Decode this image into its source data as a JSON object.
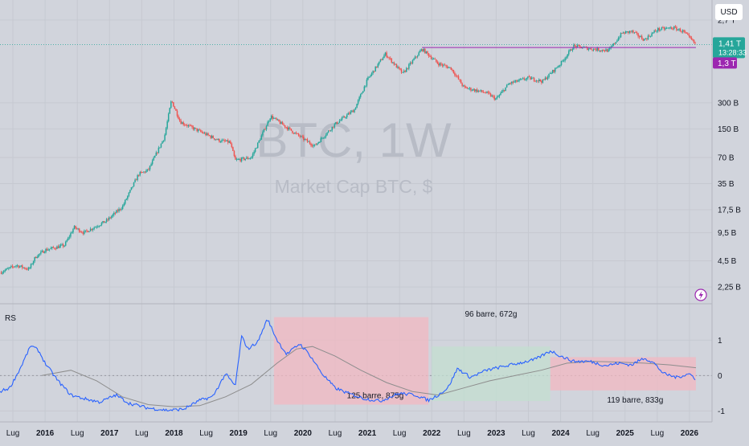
{
  "header": {
    "currency_label": "USD"
  },
  "watermark": {
    "symbol": "BTC, 1W",
    "subtitle": "Market Cap BTC, $"
  },
  "price_axis": {
    "ticks": [
      {
        "label": "2,7 T",
        "v": 2700000000000.0
      },
      {
        "label": "300 B",
        "v": 300000000000.0
      },
      {
        "label": "150 B",
        "v": 150000000000.0
      },
      {
        "label": "70 B",
        "v": 70000000000.0
      },
      {
        "label": "35 B",
        "v": 35000000000.0
      },
      {
        "label": "17,5 B",
        "v": 17500000000.0
      },
      {
        "label": "9,5 B",
        "v": 9500000000.0
      },
      {
        "label": "4,5 B",
        "v": 4500000000.0
      },
      {
        "label": "2,25 B",
        "v": 2250000000.0
      }
    ],
    "last_price": {
      "label": "1,41 T",
      "countdown": "13:28:33",
      "v": 1410000000000.0,
      "color": "#26a69a"
    },
    "level": {
      "label": "1,3 T",
      "v": 1300000000000.0,
      "color": "#9c27b0"
    }
  },
  "rs_panel": {
    "label": "RS",
    "ticks": [
      {
        "label": "1",
        "v": 1
      },
      {
        "label": "0",
        "v": 0
      },
      {
        "label": "-1",
        "v": -1
      }
    ]
  },
  "time_axis": {
    "labels": [
      {
        "label": "Lug",
        "t": 2015.5
      },
      {
        "label": "2016",
        "t": 2016.0
      },
      {
        "label": "Lug",
        "t": 2016.5
      },
      {
        "label": "2017",
        "t": 2017.0
      },
      {
        "label": "Lug",
        "t": 2017.5
      },
      {
        "label": "2018",
        "t": 2018.0
      },
      {
        "label": "Lug",
        "t": 2018.5
      },
      {
        "label": "2019",
        "t": 2019.0
      },
      {
        "label": "Lug",
        "t": 2019.5
      },
      {
        "label": "2020",
        "t": 2020.0
      },
      {
        "label": "Lug",
        "t": 2020.5
      },
      {
        "label": "2021",
        "t": 2021.0
      },
      {
        "label": "Lug",
        "t": 2021.5
      },
      {
        "label": "2022",
        "t": 2022.0
      },
      {
        "label": "Lug",
        "t": 2022.5
      },
      {
        "label": "2023",
        "t": 2023.0
      },
      {
        "label": "Lug",
        "t": 2023.5
      },
      {
        "label": "2024",
        "t": 2024.0
      },
      {
        "label": "Lug",
        "t": 2024.5
      },
      {
        "label": "2025",
        "t": 2025.0
      },
      {
        "label": "Lug",
        "t": 2025.5
      },
      {
        "label": "2026",
        "t": 2026.0
      }
    ]
  },
  "annotations": [
    {
      "label": "125 barre, 875g",
      "t0": 2019.55,
      "t1": 2021.95,
      "v0": 1.65,
      "v1": -0.82,
      "fill": "#f2b8c2"
    },
    {
      "label": "96 barre, 672g",
      "t0": 2022.0,
      "t1": 2023.84,
      "v0": 0.82,
      "v1": -0.72,
      "fill": "#c3dfd0"
    },
    {
      "label": "119 barre, 833g",
      "t0": 2023.84,
      "t1": 2026.1,
      "v0": 0.52,
      "v1": -0.42,
      "fill": "#f2b8c2"
    }
  ],
  "colors": {
    "up": "#26a69a",
    "down": "#ef5350",
    "rs_line": "#2962ff",
    "rs_ma": "#8d8d8d",
    "level_line": "#9c27b0",
    "price_line": "#26a69a"
  },
  "chart_data": [
    {
      "type": "candlestick",
      "series": [
        {
          "name": "BTC, 1W"
        }
      ],
      "y_scale": "log",
      "ylim": [
        1900000000.0,
        3000000000000.0
      ],
      "xlim": [
        2015.3,
        2026.35
      ],
      "anchors": [
        {
          "t": 2015.3,
          "v": 3300000000.0
        },
        {
          "t": 2015.55,
          "v": 4000000000.0
        },
        {
          "t": 2015.75,
          "v": 3600000000.0
        },
        {
          "t": 2015.85,
          "v": 5000000000.0
        },
        {
          "t": 2016.0,
          "v": 6000000000.0
        },
        {
          "t": 2016.3,
          "v": 6800000000.0
        },
        {
          "t": 2016.45,
          "v": 11000000000.0
        },
        {
          "t": 2016.6,
          "v": 9500000000.0
        },
        {
          "t": 2016.95,
          "v": 13000000000.0
        },
        {
          "t": 2017.2,
          "v": 19000000000.0
        },
        {
          "t": 2017.45,
          "v": 45000000000.0
        },
        {
          "t": 2017.6,
          "v": 50000000000.0
        },
        {
          "t": 2017.85,
          "v": 120000000000.0
        },
        {
          "t": 2017.96,
          "v": 320000000000.0
        },
        {
          "t": 2018.1,
          "v": 180000000000.0
        },
        {
          "t": 2018.4,
          "v": 140000000000.0
        },
        {
          "t": 2018.7,
          "v": 110000000000.0
        },
        {
          "t": 2018.87,
          "v": 105000000000.0
        },
        {
          "t": 2018.95,
          "v": 65000000000.0
        },
        {
          "t": 2019.2,
          "v": 70000000000.0
        },
        {
          "t": 2019.5,
          "v": 210000000000.0
        },
        {
          "t": 2019.9,
          "v": 130000000000.0
        },
        {
          "t": 2020.18,
          "v": 95000000000.0
        },
        {
          "t": 2020.5,
          "v": 170000000000.0
        },
        {
          "t": 2020.8,
          "v": 250000000000.0
        },
        {
          "t": 2021.0,
          "v": 550000000000.0
        },
        {
          "t": 2021.28,
          "v": 1100000000000.0
        },
        {
          "t": 2021.55,
          "v": 650000000000.0
        },
        {
          "t": 2021.85,
          "v": 1250000000000.0
        },
        {
          "t": 2022.1,
          "v": 850000000000.0
        },
        {
          "t": 2022.3,
          "v": 750000000000.0
        },
        {
          "t": 2022.5,
          "v": 450000000000.0
        },
        {
          "t": 2022.85,
          "v": 390000000000.0
        },
        {
          "t": 2023.0,
          "v": 330000000000.0
        },
        {
          "t": 2023.2,
          "v": 500000000000.0
        },
        {
          "t": 2023.5,
          "v": 580000000000.0
        },
        {
          "t": 2023.72,
          "v": 530000000000.0
        },
        {
          "t": 2024.0,
          "v": 850000000000.0
        },
        {
          "t": 2024.2,
          "v": 1350000000000.0
        },
        {
          "t": 2024.5,
          "v": 1250000000000.0
        },
        {
          "t": 2024.75,
          "v": 1200000000000.0
        },
        {
          "t": 2024.95,
          "v": 1900000000000.0
        },
        {
          "t": 2025.1,
          "v": 2000000000000.0
        },
        {
          "t": 2025.3,
          "v": 1600000000000.0
        },
        {
          "t": 2025.5,
          "v": 2100000000000.0
        },
        {
          "t": 2025.75,
          "v": 2200000000000.0
        },
        {
          "t": 2025.9,
          "v": 2000000000000.0
        },
        {
          "t": 2026.1,
          "v": 1410000000000.0
        }
      ]
    },
    {
      "type": "line",
      "series": [
        {
          "name": "RS"
        }
      ],
      "ylim": [
        -1.15,
        1.8
      ],
      "xlim": [
        2015.3,
        2026.35
      ],
      "rs": [
        {
          "t": 2015.3,
          "v": -0.45
        },
        {
          "t": 2015.45,
          "v": -0.35
        },
        {
          "t": 2015.6,
          "v": 0.15
        },
        {
          "t": 2015.78,
          "v": 0.85
        },
        {
          "t": 2015.9,
          "v": 0.7
        },
        {
          "t": 2016.0,
          "v": 0.35
        },
        {
          "t": 2016.2,
          "v": -0.15
        },
        {
          "t": 2016.4,
          "v": -0.55
        },
        {
          "t": 2016.6,
          "v": -0.65
        },
        {
          "t": 2016.85,
          "v": -0.75
        },
        {
          "t": 2017.1,
          "v": -0.55
        },
        {
          "t": 2017.3,
          "v": -0.78
        },
        {
          "t": 2017.6,
          "v": -0.92
        },
        {
          "t": 2017.9,
          "v": -0.98
        },
        {
          "t": 2018.15,
          "v": -0.95
        },
        {
          "t": 2018.4,
          "v": -0.7
        },
        {
          "t": 2018.6,
          "v": -0.6
        },
        {
          "t": 2018.8,
          "v": 0.05
        },
        {
          "t": 2018.95,
          "v": -0.3
        },
        {
          "t": 2019.05,
          "v": 1.1
        },
        {
          "t": 2019.15,
          "v": 0.75
        },
        {
          "t": 2019.3,
          "v": 0.95
        },
        {
          "t": 2019.45,
          "v": 1.6
        },
        {
          "t": 2019.6,
          "v": 1.0
        },
        {
          "t": 2019.75,
          "v": 0.6
        },
        {
          "t": 2019.95,
          "v": 0.9
        },
        {
          "t": 2020.1,
          "v": 0.6
        },
        {
          "t": 2020.3,
          "v": 0.05
        },
        {
          "t": 2020.5,
          "v": -0.35
        },
        {
          "t": 2020.7,
          "v": -0.5
        },
        {
          "t": 2020.95,
          "v": -0.65
        },
        {
          "t": 2021.2,
          "v": -0.72
        },
        {
          "t": 2021.5,
          "v": -0.5
        },
        {
          "t": 2021.75,
          "v": -0.55
        },
        {
          "t": 2021.95,
          "v": -0.7
        },
        {
          "t": 2022.1,
          "v": -0.55
        },
        {
          "t": 2022.25,
          "v": -0.35
        },
        {
          "t": 2022.4,
          "v": 0.2
        },
        {
          "t": 2022.6,
          "v": -0.05
        },
        {
          "t": 2022.85,
          "v": 0.15
        },
        {
          "t": 2023.1,
          "v": 0.25
        },
        {
          "t": 2023.35,
          "v": 0.35
        },
        {
          "t": 2023.6,
          "v": 0.45
        },
        {
          "t": 2023.85,
          "v": 0.7
        },
        {
          "t": 2024.0,
          "v": 0.55
        },
        {
          "t": 2024.2,
          "v": 0.4
        },
        {
          "t": 2024.45,
          "v": 0.4
        },
        {
          "t": 2024.7,
          "v": 0.28
        },
        {
          "t": 2024.9,
          "v": 0.35
        },
        {
          "t": 2025.1,
          "v": 0.3
        },
        {
          "t": 2025.3,
          "v": 0.5
        },
        {
          "t": 2025.45,
          "v": 0.35
        },
        {
          "t": 2025.6,
          "v": 0.05
        },
        {
          "t": 2025.8,
          "v": -0.05
        },
        {
          "t": 2026.0,
          "v": 0.05
        },
        {
          "t": 2026.1,
          "v": -0.1
        }
      ],
      "ma": [
        {
          "t": 2015.95,
          "v": 0.0
        },
        {
          "t": 2016.4,
          "v": 0.15
        },
        {
          "t": 2016.8,
          "v": -0.15
        },
        {
          "t": 2017.2,
          "v": -0.6
        },
        {
          "t": 2017.6,
          "v": -0.82
        },
        {
          "t": 2018.0,
          "v": -0.88
        },
        {
          "t": 2018.4,
          "v": -0.85
        },
        {
          "t": 2018.8,
          "v": -0.6
        },
        {
          "t": 2019.2,
          "v": -0.25
        },
        {
          "t": 2019.6,
          "v": 0.35
        },
        {
          "t": 2019.9,
          "v": 0.75
        },
        {
          "t": 2020.15,
          "v": 0.82
        },
        {
          "t": 2020.5,
          "v": 0.55
        },
        {
          "t": 2020.9,
          "v": 0.15
        },
        {
          "t": 2021.3,
          "v": -0.2
        },
        {
          "t": 2021.7,
          "v": -0.45
        },
        {
          "t": 2022.1,
          "v": -0.55
        },
        {
          "t": 2022.5,
          "v": -0.35
        },
        {
          "t": 2022.9,
          "v": -0.15
        },
        {
          "t": 2023.3,
          "v": 0.0
        },
        {
          "t": 2023.7,
          "v": 0.15
        },
        {
          "t": 2024.1,
          "v": 0.35
        },
        {
          "t": 2024.5,
          "v": 0.4
        },
        {
          "t": 2024.9,
          "v": 0.38
        },
        {
          "t": 2025.3,
          "v": 0.35
        },
        {
          "t": 2025.7,
          "v": 0.3
        },
        {
          "t": 2026.1,
          "v": 0.22
        }
      ]
    }
  ]
}
